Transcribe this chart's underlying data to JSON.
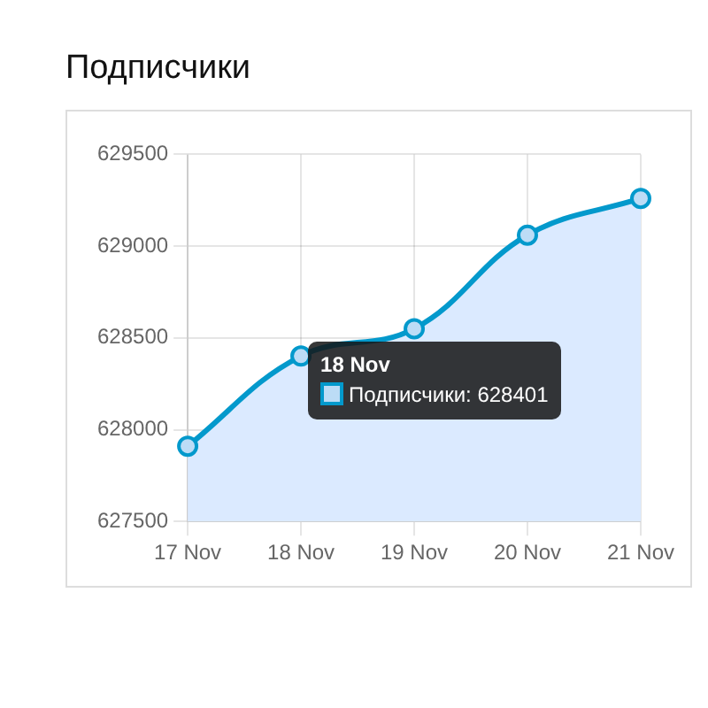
{
  "chart_data": {
    "type": "area",
    "title": "Подписчики",
    "categories": [
      "17 Nov",
      "18 Nov",
      "19 Nov",
      "20 Nov",
      "21 Nov"
    ],
    "series": [
      {
        "name": "Подписчики:",
        "color": "#0399cc",
        "values": [
          627910,
          628401,
          628550,
          629060,
          629260
        ],
        "value_labels": [
          null,
          "628401",
          null,
          null,
          null
        ]
      }
    ],
    "ylim": [
      627500,
      629500
    ],
    "yticks": [
      627500,
      628000,
      628500,
      629000,
      629500
    ],
    "grid": true,
    "legend": false,
    "marker": "circle"
  }
}
